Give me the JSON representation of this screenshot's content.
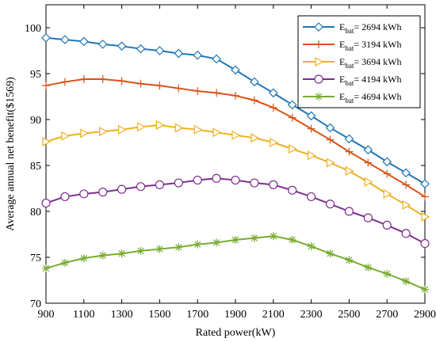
{
  "chart_data": {
    "type": "line",
    "title": "",
    "xlabel": "Rated power(kW)",
    "ylabel": "Average annual net benefit($1569)",
    "xlim": [
      900,
      2900
    ],
    "ylim": [
      70,
      102.5
    ],
    "xticks": [
      900,
      1100,
      1300,
      1500,
      1700,
      1900,
      2100,
      2300,
      2500,
      2700,
      2900
    ],
    "yticks": [
      70,
      75,
      80,
      85,
      90,
      95,
      100
    ],
    "grid": false,
    "legend_position": "top-right",
    "x": [
      900,
      1000,
      1100,
      1200,
      1300,
      1400,
      1500,
      1600,
      1700,
      1800,
      1900,
      2000,
      2100,
      2200,
      2300,
      2400,
      2500,
      2600,
      2700,
      2800,
      2900
    ],
    "series": [
      {
        "name": "2694 kWh",
        "legend_prefix": "E",
        "legend_sub": "bat",
        "legend_suffix": "= 2694 kWh",
        "color": "#1f77b4",
        "marker": "diamond",
        "values": [
          98.9,
          98.7,
          98.5,
          98.2,
          98.0,
          97.7,
          97.5,
          97.2,
          97.0,
          96.6,
          95.4,
          94.1,
          92.9,
          91.6,
          90.4,
          89.1,
          87.9,
          86.7,
          85.4,
          84.2,
          83.0
        ]
      },
      {
        "name": "3194 kWh",
        "legend_prefix": "E",
        "legend_sub": "bat",
        "legend_suffix": "= 3194 kWh",
        "color": "#d95319",
        "marker": "plus",
        "values": [
          93.7,
          94.1,
          94.4,
          94.4,
          94.2,
          93.9,
          93.7,
          93.4,
          93.1,
          92.9,
          92.6,
          92.1,
          91.3,
          90.2,
          89.0,
          87.8,
          86.5,
          85.3,
          84.1,
          82.9,
          81.6
        ]
      },
      {
        "name": "3694 kWh",
        "legend_prefix": "E",
        "legend_sub": "bat",
        "legend_suffix": "= 3694 kWh",
        "color": "#edb120",
        "marker": "triangle-right",
        "values": [
          87.6,
          88.2,
          88.5,
          88.7,
          88.9,
          89.2,
          89.4,
          89.1,
          88.9,
          88.6,
          88.3,
          88.0,
          87.5,
          86.8,
          86.1,
          85.3,
          84.4,
          83.2,
          81.9,
          80.7,
          79.4
        ]
      },
      {
        "name": "4194 kWh",
        "legend_prefix": "E",
        "legend_sub": "bat",
        "legend_suffix": "= 4194 kWh",
        "color": "#7e2f8e",
        "marker": "circle",
        "values": [
          80.9,
          81.6,
          81.9,
          82.1,
          82.4,
          82.7,
          82.9,
          83.1,
          83.4,
          83.6,
          83.4,
          83.1,
          82.9,
          82.3,
          81.6,
          80.8,
          80.0,
          79.3,
          78.5,
          77.6,
          76.5
        ]
      },
      {
        "name": "4694 kWh",
        "legend_prefix": "E",
        "legend_sub": "bat",
        "legend_suffix": "= 4694 kWh",
        "color": "#77ac30",
        "marker": "asterisk",
        "values": [
          73.8,
          74.4,
          74.9,
          75.2,
          75.4,
          75.7,
          75.9,
          76.1,
          76.4,
          76.6,
          76.9,
          77.1,
          77.3,
          76.9,
          76.2,
          75.4,
          74.7,
          73.9,
          73.2,
          72.4,
          71.5
        ]
      }
    ]
  }
}
